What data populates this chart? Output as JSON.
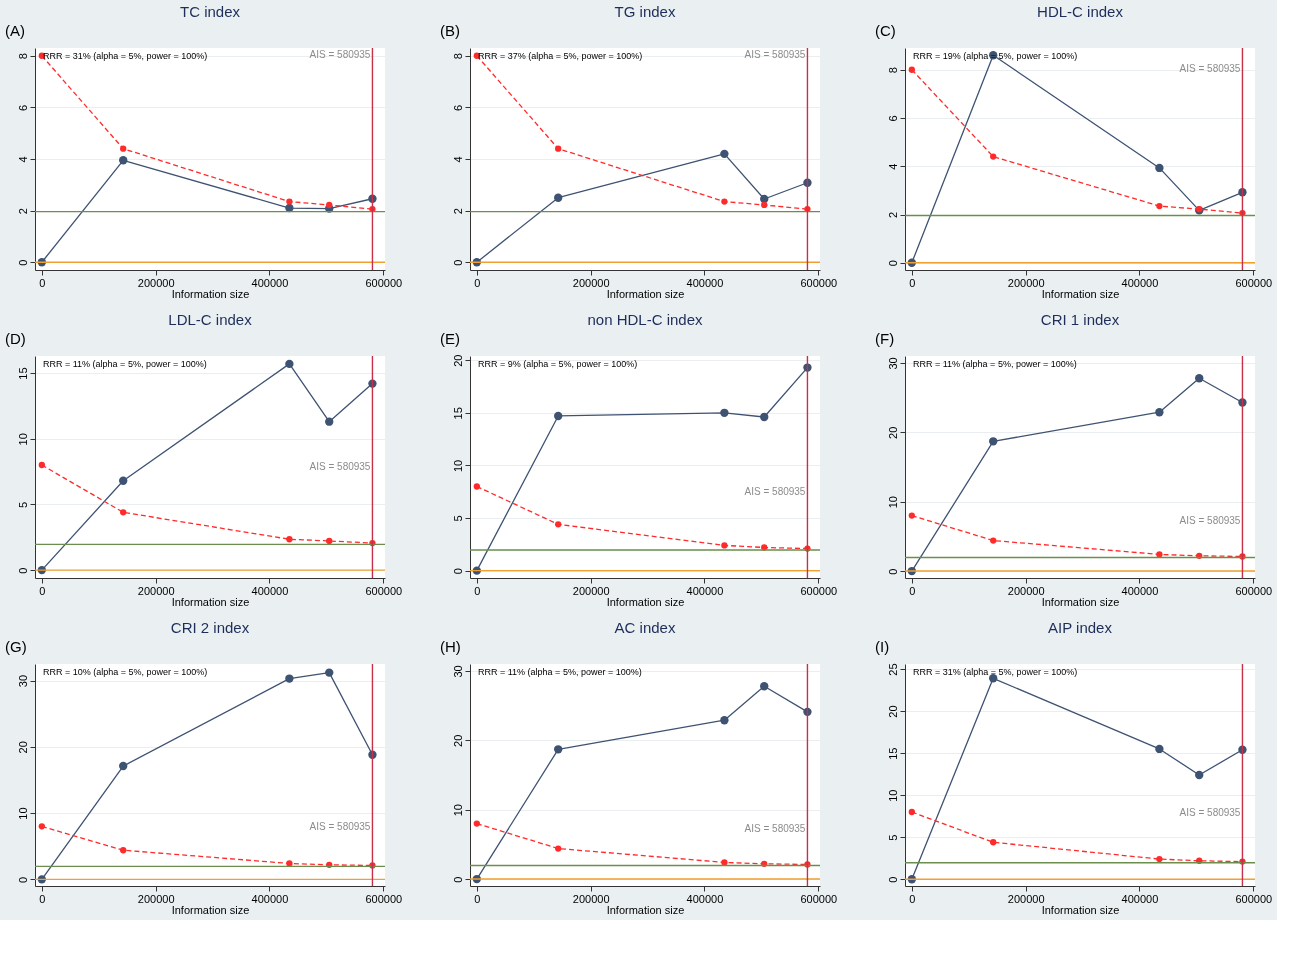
{
  "chart_data": [
    {
      "type": "line",
      "title": "TC index",
      "xlabel": "Information size",
      "x": [
        0,
        143000,
        435000,
        505000,
        580935
      ],
      "xlim": [
        -12000,
        603000
      ],
      "xticks": [
        0,
        200000,
        400000,
        600000
      ],
      "ylim": [
        -0.3,
        8.3
      ],
      "yticks": [
        0,
        2,
        4,
        6,
        8
      ],
      "grid": "y",
      "marker": "circle",
      "series": [
        {
          "color": "#3e5272",
          "values": [
            0,
            3.95,
            2.1,
            2.08,
            2.46
          ]
        },
        {
          "color": "#ff2a2a",
          "line_style": "dashed",
          "values": [
            8,
            4.4,
            2.35,
            2.22,
            2.06
          ]
        }
      ],
      "ref_lines": [
        {
          "axis": "y",
          "value": 1.96,
          "color": "#6b8e4e"
        },
        {
          "axis": "y",
          "value": 0,
          "color": "#f0a030"
        },
        {
          "axis": "x",
          "value": 580935,
          "label": "AIS = 580935",
          "color": "#c8304a"
        }
      ],
      "annotations": [
        "(A)",
        "RRR = 31% (alpha = 5%, power = 100%)"
      ]
    },
    {
      "type": "line",
      "title": "TG index",
      "xlabel": "Information size",
      "x": [
        0,
        143000,
        435000,
        505000,
        580935
      ],
      "xlim": [
        -12000,
        603000
      ],
      "xticks": [
        0,
        200000,
        400000,
        600000
      ],
      "ylim": [
        -0.3,
        8.3
      ],
      "yticks": [
        0,
        2,
        4,
        6,
        8
      ],
      "grid": "y",
      "marker": "circle",
      "series": [
        {
          "color": "#3e5272",
          "values": [
            0,
            2.5,
            4.2,
            2.45,
            3.08
          ]
        },
        {
          "color": "#ff2a2a",
          "line_style": "dashed",
          "values": [
            8,
            4.4,
            2.35,
            2.22,
            2.06
          ]
        }
      ],
      "ref_lines": [
        {
          "axis": "y",
          "value": 1.96,
          "color": "#6b8e4e"
        },
        {
          "axis": "y",
          "value": 0,
          "color": "#f0a030"
        },
        {
          "axis": "x",
          "value": 580935,
          "label": "AIS = 580935",
          "color": "#c8304a"
        }
      ],
      "annotations": [
        "(B)",
        "RRR = 37% (alpha = 5%, power = 100%)"
      ]
    },
    {
      "type": "line",
      "title": "HDL-C index",
      "xlabel": "Information size",
      "x": [
        0,
        143000,
        435000,
        505000,
        580935
      ],
      "xlim": [
        -12000,
        603000
      ],
      "xticks": [
        0,
        200000,
        400000,
        600000
      ],
      "ylim": [
        -0.3,
        8.9
      ],
      "yticks": [
        0,
        2,
        4,
        6,
        8
      ],
      "grid": "y",
      "marker": "circle",
      "series": [
        {
          "color": "#3e5272",
          "values": [
            0,
            8.6,
            3.93,
            2.17,
            2.92
          ]
        },
        {
          "color": "#ff2a2a",
          "line_style": "dashed",
          "values": [
            8,
            4.4,
            2.35,
            2.22,
            2.06
          ]
        }
      ],
      "ref_lines": [
        {
          "axis": "y",
          "value": 1.96,
          "color": "#6b8e4e"
        },
        {
          "axis": "y",
          "value": 0,
          "color": "#f0a030"
        },
        {
          "axis": "x",
          "value": 580935,
          "label": "AIS = 580935",
          "color": "#c8304a"
        }
      ],
      "annotations": [
        "(C)",
        "RRR = 19% (alpha = 5%, power = 100%)"
      ]
    },
    {
      "type": "line",
      "title": "LDL-C index",
      "xlabel": "Information size",
      "x": [
        0,
        143000,
        435000,
        505000,
        580935
      ],
      "xlim": [
        -12000,
        603000
      ],
      "xticks": [
        0,
        200000,
        400000,
        600000
      ],
      "ylim": [
        -0.6,
        16.3
      ],
      "yticks": [
        0,
        5,
        10,
        15
      ],
      "grid": "y",
      "marker": "circle",
      "series": [
        {
          "color": "#3e5272",
          "values": [
            0,
            6.8,
            15.7,
            11.3,
            14.2
          ]
        },
        {
          "color": "#ff2a2a",
          "line_style": "dashed",
          "values": [
            8,
            4.4,
            2.35,
            2.22,
            2.06
          ]
        }
      ],
      "ref_lines": [
        {
          "axis": "y",
          "value": 1.96,
          "color": "#6b8e4e"
        },
        {
          "axis": "y",
          "value": 0,
          "color": "#f0a030"
        },
        {
          "axis": "x",
          "value": 580935,
          "label": "AIS = 580935",
          "color": "#c8304a"
        }
      ],
      "annotations": [
        "(D)",
        "RRR = 11% (alpha = 5%, power = 100%)"
      ]
    },
    {
      "type": "line",
      "title": "non HDL-C index",
      "xlabel": "Information size",
      "x": [
        0,
        143000,
        435000,
        505000,
        580935
      ],
      "xlim": [
        -12000,
        603000
      ],
      "xticks": [
        0,
        200000,
        400000,
        600000
      ],
      "ylim": [
        -0.7,
        20.4
      ],
      "yticks": [
        0,
        5,
        10,
        15,
        20
      ],
      "grid": "y",
      "marker": "circle",
      "series": [
        {
          "color": "#3e5272",
          "values": [
            0,
            14.7,
            15,
            14.6,
            19.3
          ]
        },
        {
          "color": "#ff2a2a",
          "line_style": "dashed",
          "values": [
            8,
            4.4,
            2.4,
            2.2,
            2.1
          ]
        }
      ],
      "ref_lines": [
        {
          "axis": "y",
          "value": 1.96,
          "color": "#6b8e4e"
        },
        {
          "axis": "y",
          "value": 0,
          "color": "#f0a030"
        },
        {
          "axis": "x",
          "value": 580935,
          "label": "AIS = 580935",
          "color": "#c8304a"
        }
      ],
      "annotations": [
        "(E)",
        "RRR = 9% (alpha = 5%, power = 100%)"
      ]
    },
    {
      "type": "line",
      "title": "CRI 1 index",
      "xlabel": "Information size",
      "x": [
        0,
        143000,
        435000,
        505000,
        580935
      ],
      "xlim": [
        -12000,
        603000
      ],
      "xticks": [
        0,
        200000,
        400000,
        600000
      ],
      "ylim": [
        -1,
        31
      ],
      "yticks": [
        0,
        10,
        20,
        30
      ],
      "grid": "y",
      "marker": "circle",
      "series": [
        {
          "color": "#3e5272",
          "values": [
            0,
            18.7,
            22.9,
            27.8,
            24.3
          ]
        },
        {
          "color": "#ff2a2a",
          "line_style": "dashed",
          "values": [
            8,
            4.4,
            2.4,
            2.2,
            2.1
          ]
        }
      ],
      "ref_lines": [
        {
          "axis": "y",
          "value": 1.96,
          "color": "#6b8e4e"
        },
        {
          "axis": "y",
          "value": 0,
          "color": "#f0a030"
        },
        {
          "axis": "x",
          "value": 580935,
          "label": "AIS = 580935",
          "color": "#c8304a"
        }
      ],
      "annotations": [
        "(F)",
        "RRR = 11% (alpha = 5%, power = 100%)"
      ]
    },
    {
      "type": "line",
      "title": "CRI 2 index",
      "xlabel": "Information size",
      "x": [
        0,
        143000,
        435000,
        505000,
        580935
      ],
      "xlim": [
        -12000,
        603000
      ],
      "xticks": [
        0,
        200000,
        400000,
        600000
      ],
      "ylim": [
        -1,
        32.5
      ],
      "yticks": [
        0,
        10,
        20,
        30
      ],
      "grid": "y",
      "marker": "circle",
      "series": [
        {
          "color": "#3e5272",
          "values": [
            0,
            17.1,
            30.3,
            31.2,
            18.8
          ]
        },
        {
          "color": "#ff2a2a",
          "line_style": "dashed",
          "values": [
            8,
            4.4,
            2.4,
            2.2,
            2.1
          ]
        }
      ],
      "ref_lines": [
        {
          "axis": "y",
          "value": 1.96,
          "color": "#6b8e4e"
        },
        {
          "axis": "y",
          "value": 0,
          "color": "#f0a030"
        },
        {
          "axis": "x",
          "value": 580935,
          "label": "AIS = 580935",
          "color": "#c8304a"
        }
      ],
      "annotations": [
        "(G)",
        "RRR = 10% (alpha = 5%, power = 100%)"
      ]
    },
    {
      "type": "line",
      "title": "AC index",
      "xlabel": "Information size",
      "x": [
        0,
        143000,
        435000,
        505000,
        580935
      ],
      "xlim": [
        -12000,
        603000
      ],
      "xticks": [
        0,
        200000,
        400000,
        600000
      ],
      "ylim": [
        -1,
        31
      ],
      "yticks": [
        0,
        10,
        20,
        30
      ],
      "grid": "y",
      "marker": "circle",
      "series": [
        {
          "color": "#3e5272",
          "values": [
            0,
            18.7,
            22.9,
            27.8,
            24.1
          ]
        },
        {
          "color": "#ff2a2a",
          "line_style": "dashed",
          "values": [
            8,
            4.4,
            2.4,
            2.2,
            2.1
          ]
        }
      ],
      "ref_lines": [
        {
          "axis": "y",
          "value": 1.96,
          "color": "#6b8e4e"
        },
        {
          "axis": "y",
          "value": 0,
          "color": "#f0a030"
        },
        {
          "axis": "x",
          "value": 580935,
          "label": "AIS = 580935",
          "color": "#c8304a"
        }
      ],
      "annotations": [
        "(H)",
        "RRR = 11% (alpha = 5%, power = 100%)"
      ]
    },
    {
      "type": "line",
      "title": "AIP index",
      "xlabel": "Information size",
      "x": [
        0,
        143000,
        435000,
        505000,
        580935
      ],
      "xlim": [
        -12000,
        603000
      ],
      "xticks": [
        0,
        200000,
        400000,
        600000
      ],
      "ylim": [
        -0.8,
        25.6
      ],
      "yticks": [
        0,
        5,
        10,
        15,
        20,
        25
      ],
      "grid": "y",
      "marker": "circle",
      "series": [
        {
          "color": "#3e5272",
          "values": [
            0,
            23.9,
            15.5,
            12.4,
            15.4
          ]
        },
        {
          "color": "#ff2a2a",
          "line_style": "dashed",
          "values": [
            8,
            4.4,
            2.4,
            2.2,
            2.1
          ]
        }
      ],
      "ref_lines": [
        {
          "axis": "y",
          "value": 1.96,
          "color": "#6b8e4e"
        },
        {
          "axis": "y",
          "value": 0,
          "color": "#f0a030"
        },
        {
          "axis": "x",
          "value": 580935,
          "label": "AIS = 580935",
          "color": "#c8304a"
        }
      ],
      "annotations": [
        "(I)",
        "RRR = 31% (alpha = 5%, power = 100%)"
      ]
    }
  ]
}
